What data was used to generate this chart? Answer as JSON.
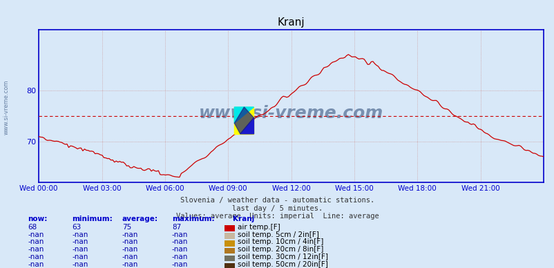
{
  "title": "Kranj",
  "subtitle1": "Slovenia / weather data - automatic stations.",
  "subtitle2": "last day / 5 minutes.",
  "subtitle3": "Values: average  Units: imperial  Line: average",
  "bg_color": "#d8e8f8",
  "plot_bg_color": "#d8e8f8",
  "line_color": "#cc0000",
  "avg_line_color": "#cc0000",
  "avg_value": 75,
  "ylabel": "",
  "yticks": [
    70,
    80
  ],
  "ymin": 62,
  "ymax": 92,
  "xlabel_color": "#0000cc",
  "now": 68,
  "minimum": 63,
  "average": 75,
  "maximum": 87,
  "xtick_labels": [
    "Wed 00:00",
    "Wed 03:00",
    "Wed 06:00",
    "Wed 09:00",
    "Wed 12:00",
    "Wed 15:00",
    "Wed 18:00",
    "Wed 21:00"
  ],
  "legend_items": [
    {
      "label": "air temp.[F]",
      "color": "#cc0000"
    },
    {
      "label": "soil temp. 5cm / 2in[F]",
      "color": "#c8b8a0"
    },
    {
      "label": "soil temp. 10cm / 4in[F]",
      "color": "#c8900a"
    },
    {
      "label": "soil temp. 20cm / 8in[F]",
      "color": "#b07820"
    },
    {
      "label": "soil temp. 30cm / 12in[F]",
      "color": "#707060"
    },
    {
      "label": "soil temp. 50cm / 20in[F]",
      "color": "#503010"
    }
  ],
  "watermark_text": "www.si-vreme.com",
  "watermark_color": "#1a3a6a",
  "axis_color": "#0000cc",
  "grid_color": "#cc9999",
  "title_color": "#000000",
  "title_fontsize": 11,
  "tick_label_color": "#0000cc"
}
